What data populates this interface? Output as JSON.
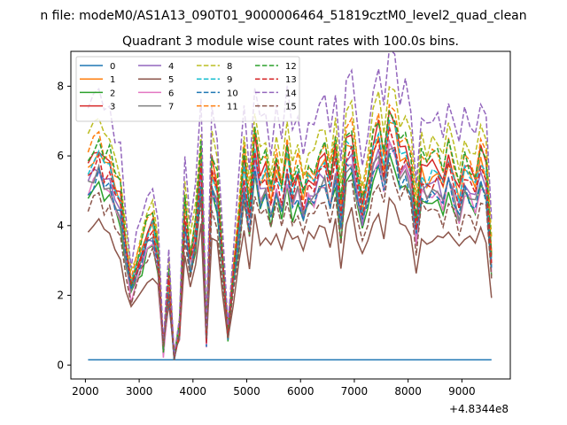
{
  "figure": {
    "suptitle": "n file: modeM0/AS1A13_090T01_9000006464_51819cztM0_level2_quad_clean"
  },
  "chart_data": {
    "type": "line",
    "title": "Quadrant 3 module wise count rates with 100.0s bins.",
    "xlabel": "",
    "ylabel": "",
    "x_offset_label": "+4.8344e8",
    "xlim": [
      1730,
      9900
    ],
    "ylim": [
      -0.4,
      9.0
    ],
    "xticks": [
      2000,
      3000,
      4000,
      5000,
      6000,
      7000,
      8000,
      9000
    ],
    "xtick_labels": [
      "2000",
      "3000",
      "4000",
      "5000",
      "6000",
      "7000",
      "8000",
      "9000"
    ],
    "yticks": [
      0,
      2,
      4,
      6,
      8
    ],
    "ytick_labels": [
      "0",
      "2",
      "4",
      "6",
      "8"
    ],
    "legend_location": "upper-left",
    "legend_columns": 4,
    "x": [
      2050,
      2150,
      2250,
      2350,
      2450,
      2550,
      2650,
      2750,
      2850,
      2950,
      3050,
      3150,
      3250,
      3350,
      3450,
      3550,
      3650,
      3750,
      3850,
      3950,
      4050,
      4150,
      4250,
      4350,
      4450,
      4550,
      4650,
      4750,
      4850,
      4950,
      5050,
      5150,
      5250,
      5350,
      5450,
      5550,
      5650,
      5750,
      5850,
      5950,
      6050,
      6150,
      6250,
      6350,
      6450,
      6550,
      6650,
      6750,
      6850,
      6950,
      7050,
      7150,
      7250,
      7350,
      7450,
      7550,
      7650,
      7750,
      7850,
      7950,
      8050,
      8150,
      8250,
      8350,
      8450,
      8550,
      8650,
      8750,
      8850,
      8950,
      9050,
      9150,
      9250,
      9350,
      9450,
      9550
    ],
    "series": [
      {
        "name": "0",
        "color": "#1f77b4",
        "dashed": false,
        "base": 0,
        "amp": 0
      },
      {
        "name": "1",
        "color": "#ff7f0e",
        "dashed": false,
        "base": 5.6,
        "amp": 1.0
      },
      {
        "name": "2",
        "color": "#2ca02c",
        "dashed": false,
        "base": 4.8,
        "amp": 1.0
      },
      {
        "name": "3",
        "color": "#d62728",
        "dashed": false,
        "base": 5.8,
        "amp": 1.0
      },
      {
        "name": "4",
        "color": "#9467bd",
        "dashed": false,
        "base": 5.2,
        "amp": 1.0
      },
      {
        "name": "5",
        "color": "#8c564b",
        "dashed": false,
        "base": 3.8,
        "amp": 1.0
      },
      {
        "name": "6",
        "color": "#e377c2",
        "dashed": false,
        "base": 5.0,
        "amp": 1.0
      },
      {
        "name": "7",
        "color": "#7f7f7f",
        "dashed": false,
        "base": 5.1,
        "amp": 1.0
      },
      {
        "name": "8",
        "color": "#bcbd22",
        "dashed": true,
        "base": 6.5,
        "amp": 1.0
      },
      {
        "name": "9",
        "color": "#17becf",
        "dashed": true,
        "base": 5.6,
        "amp": 1.0
      },
      {
        "name": "10",
        "color": "#1f77b4",
        "dashed": true,
        "base": 5.0,
        "amp": 1.0
      },
      {
        "name": "11",
        "color": "#ff7f0e",
        "dashed": true,
        "base": 6.1,
        "amp": 1.0
      },
      {
        "name": "12",
        "color": "#2ca02c",
        "dashed": true,
        "base": 6.0,
        "amp": 1.0
      },
      {
        "name": "13",
        "color": "#d62728",
        "dashed": true,
        "base": 5.4,
        "amp": 1.0
      },
      {
        "name": "14",
        "color": "#9467bd",
        "dashed": true,
        "base": 7.3,
        "amp": 1.0
      },
      {
        "name": "15",
        "color": "#8c564b",
        "dashed": true,
        "base": 4.5,
        "amp": 1.0
      }
    ],
    "shape": [
      1.0,
      1.05,
      1.08,
      1.0,
      1.02,
      0.9,
      0.85,
      0.6,
      0.4,
      0.5,
      0.58,
      0.68,
      0.7,
      0.55,
      0.08,
      0.45,
      0.05,
      0.18,
      0.8,
      0.55,
      0.7,
      1.05,
      0.14,
      1.0,
      0.9,
      0.55,
      0.18,
      0.45,
      0.72,
      1.02,
      0.78,
      1.12,
      0.95,
      1.0,
      0.85,
      1.0,
      0.88,
      1.08,
      0.9,
      0.98,
      0.85,
      0.95,
      0.92,
      1.02,
      1.05,
      0.92,
      1.08,
      0.78,
      1.12,
      1.15,
      0.95,
      0.8,
      0.92,
      1.1,
      1.18,
      1.0,
      1.25,
      1.2,
      1.05,
      1.1,
      1.0,
      0.72,
      1.0,
      0.95,
      0.98,
      1.0,
      0.92,
      1.05,
      0.95,
      0.85,
      1.0,
      0.95,
      0.9,
      1.05,
      0.98,
      0.55
    ]
  }
}
